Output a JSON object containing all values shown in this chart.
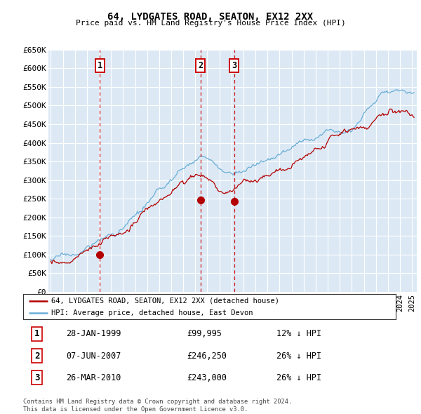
{
  "title": "64, LYDGATES ROAD, SEATON, EX12 2XX",
  "subtitle": "Price paid vs. HM Land Registry's House Price Index (HPI)",
  "ylim": [
    0,
    650000
  ],
  "yticks": [
    0,
    50000,
    100000,
    150000,
    200000,
    250000,
    300000,
    350000,
    400000,
    450000,
    500000,
    550000,
    600000,
    650000
  ],
  "xlim_start": 1994.8,
  "xlim_end": 2025.4,
  "bg_color": "#dce9f5",
  "grid_color": "#ffffff",
  "hpi_color": "#6baed6",
  "property_color": "#b30000",
  "transactions": [
    {
      "num": 1,
      "date": "28-JAN-1999",
      "price": 99995,
      "pct": "12%",
      "x": 1999.08
    },
    {
      "num": 2,
      "date": "07-JUN-2007",
      "price": 246250,
      "pct": "26%",
      "x": 2007.44
    },
    {
      "num": 3,
      "date": "26-MAR-2010",
      "price": 243000,
      "pct": "26%",
      "x": 2010.23
    }
  ],
  "legend_line1": "64, LYDGATES ROAD, SEATON, EX12 2XX (detached house)",
  "legend_line2": "HPI: Average price, detached house, East Devon",
  "footer1": "Contains HM Land Registry data © Crown copyright and database right 2024.",
  "footer2": "This data is licensed under the Open Government Licence v3.0."
}
